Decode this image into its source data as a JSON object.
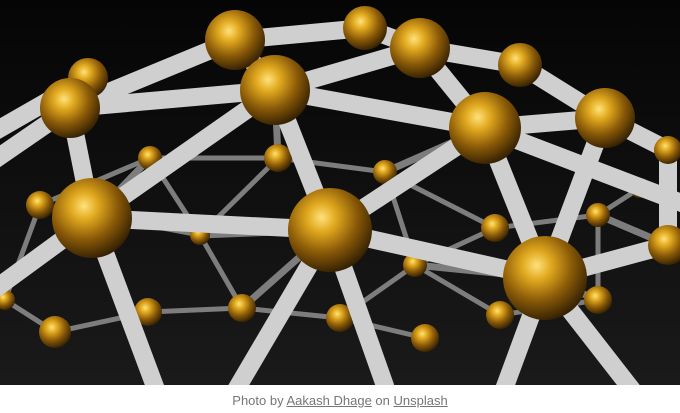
{
  "photo": {
    "subject_icon": "molecular-network-image",
    "colors": {
      "background": "#0a0a0a",
      "rod": "#c9c9c9",
      "sphere": "#b07d12"
    }
  },
  "caption": {
    "prefix": "Photo by",
    "author": "Aakash Dhage",
    "joiner": "on",
    "site": "Unsplash"
  }
}
